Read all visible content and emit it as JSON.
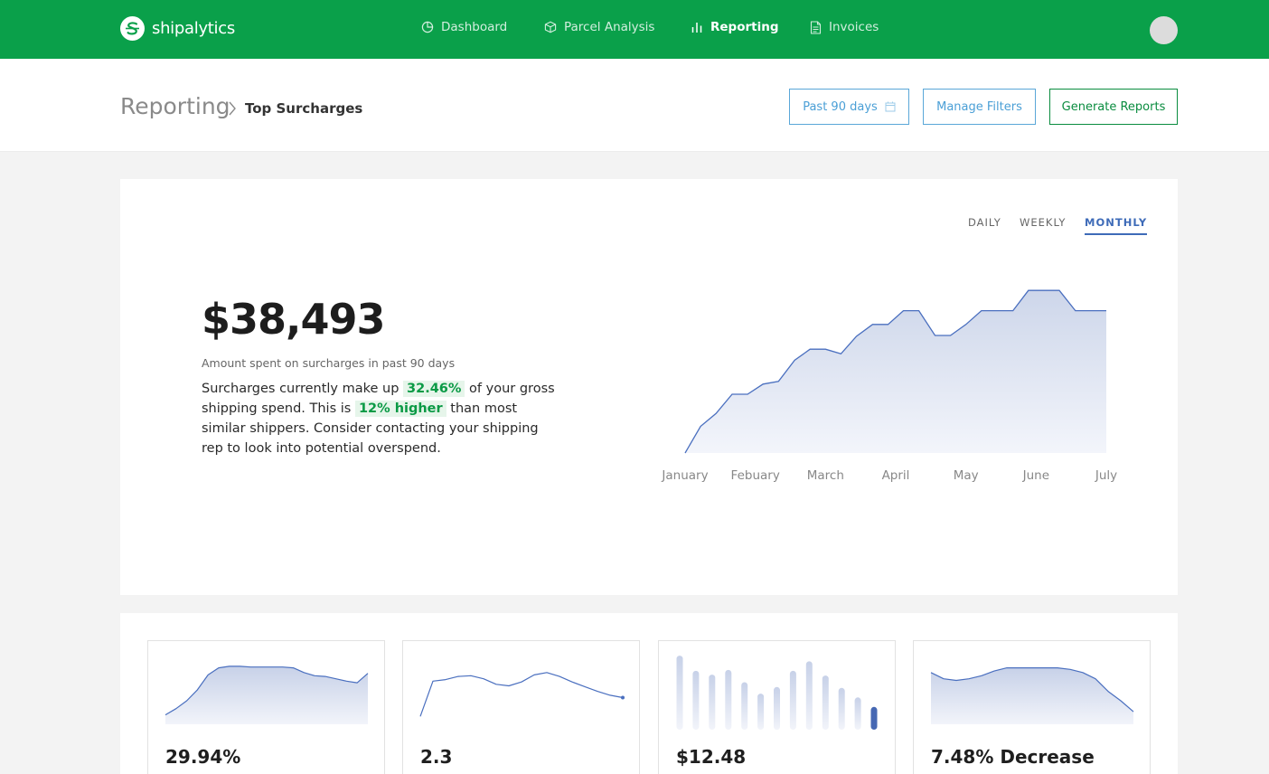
{
  "nav": {
    "brand": "shipalytics",
    "items": [
      {
        "label": "Dashboard",
        "icon": "pie-chart-icon",
        "active": false
      },
      {
        "label": "Parcel Analysis",
        "icon": "package-icon",
        "active": false
      },
      {
        "label": "Reporting",
        "icon": "bar-chart-icon",
        "active": true
      },
      {
        "label": "Invoices",
        "icon": "document-icon",
        "active": false
      }
    ]
  },
  "header": {
    "breadcrumb_root": "Reporting",
    "breadcrumb_current": "Top Surcharges",
    "date_range_label": "Past 90 days",
    "manage_filters_label": "Manage Filters",
    "generate_reports_label": "Generate Reports"
  },
  "summary": {
    "period_tabs": [
      "DAILY",
      "WEEKLY",
      "MONTHLY"
    ],
    "active_period": "MONTHLY",
    "amount": "$38,493",
    "amount_caption": "Amount spent on surcharges in past 90 days",
    "text_1": "Surcharges currently make up ",
    "highlight_1": "32.46%",
    "text_2": " of your gross shipping spend. This is ",
    "highlight_2": "12% higher",
    "text_3": " than most similar shippers. Consider contacting your shipping rep to look into potential overspend."
  },
  "colors": {
    "brand_green": "#0aa04a",
    "accent_blue": "#3e6bb8",
    "highlight_green": "#0a9a45"
  },
  "chart_data": {
    "type": "area",
    "categories": [
      "January",
      "Febuary",
      "March",
      "April",
      "May",
      "June",
      "July"
    ],
    "x": [
      0,
      0.22,
      0.44,
      0.67,
      0.89,
      1.11,
      1.33,
      1.56,
      1.78,
      2.0,
      2.22,
      2.44,
      2.67,
      2.89,
      3.11,
      3.33,
      3.56,
      3.78,
      4.0,
      4.22,
      4.44,
      4.67,
      4.89,
      5.11,
      5.33,
      5.56,
      5.78,
      6.0
    ],
    "values": [
      0,
      29,
      43,
      64,
      64,
      75,
      78,
      101,
      113,
      113,
      108,
      127,
      140,
      140,
      155,
      155,
      128,
      128,
      140,
      155,
      155,
      155,
      177,
      177,
      177,
      155,
      155,
      155
    ],
    "ylim": [
      0,
      190
    ],
    "grid": false
  },
  "mini_cards": [
    {
      "value": "29.94%",
      "chart": {
        "type": "area",
        "values": [
          12,
          20,
          30,
          44,
          63,
          72,
          74,
          74,
          73,
          73,
          73,
          73,
          72,
          66,
          62,
          61,
          58,
          55,
          53,
          65
        ],
        "ylim": [
          0,
          90
        ]
      }
    },
    {
      "value": "2.3",
      "chart": {
        "type": "line",
        "values": [
          10,
          55,
          57,
          61,
          62,
          58,
          51,
          49,
          54,
          63,
          66,
          61,
          54,
          48,
          42,
          37,
          34
        ],
        "ylim": [
          0,
          90
        ]
      }
    },
    {
      "value": "$12.48",
      "chart": {
        "type": "bar",
        "values": [
          78,
          62,
          58,
          63,
          50,
          38,
          45,
          62,
          72,
          57,
          44,
          34,
          24
        ],
        "highlight_index": 12,
        "ylim": [
          0,
          80
        ]
      }
    },
    {
      "value": "7.48% Decrease",
      "chart": {
        "type": "area",
        "values": [
          66,
          58,
          56,
          58,
          62,
          68,
          72,
          72,
          72,
          72,
          72,
          70,
          66,
          58,
          42,
          30,
          16
        ],
        "ylim": [
          0,
          90
        ]
      }
    }
  ]
}
